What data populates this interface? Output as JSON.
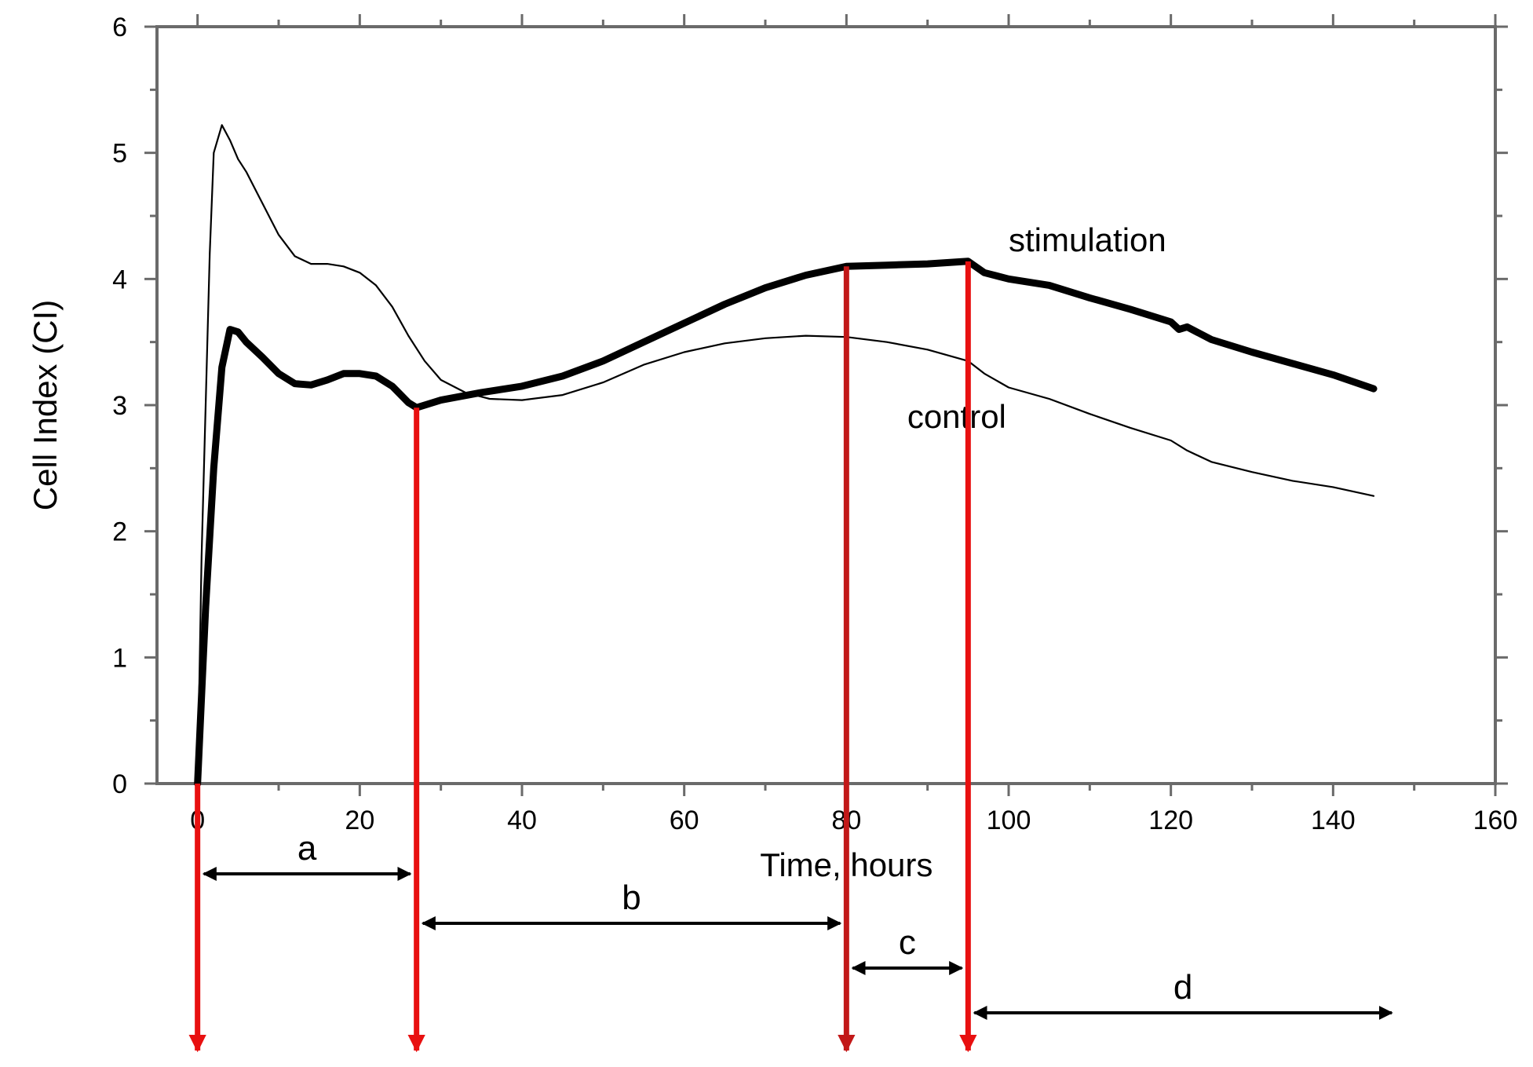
{
  "chart_data": {
    "type": "line",
    "title": "",
    "xlabel": "Time, hours",
    "ylabel": "Cell Index (CI)",
    "xlim": [
      -5,
      160
    ],
    "ylim": [
      0,
      6
    ],
    "x_ticks": [
      0,
      20,
      40,
      60,
      80,
      100,
      120,
      140,
      160
    ],
    "x_tick_labels": [
      "0",
      "20",
      "40",
      "60",
      "80",
      "100",
      "120",
      "140",
      "160"
    ],
    "y_ticks": [
      0,
      1,
      2,
      3,
      4,
      5,
      6
    ],
    "y_tick_labels": [
      "0",
      "1",
      "2",
      "3",
      "4",
      "5",
      "6"
    ],
    "grid": false,
    "legend": "none (series labelled inline)",
    "series": [
      {
        "name": "stimulation",
        "color": "#000000",
        "weight": "thick",
        "x": [
          0,
          0.5,
          1,
          2,
          3,
          4,
          5,
          6,
          8,
          10,
          12,
          14,
          16,
          18,
          20,
          22,
          24,
          26,
          27,
          30,
          35,
          40,
          45,
          50,
          55,
          60,
          65,
          70,
          75,
          80,
          85,
          90,
          95,
          97,
          100,
          105,
          110,
          115,
          120,
          121,
          122,
          125,
          130,
          135,
          140,
          145
        ],
        "y": [
          0,
          0.7,
          1.4,
          2.5,
          3.3,
          3.6,
          3.58,
          3.5,
          3.38,
          3.25,
          3.17,
          3.16,
          3.2,
          3.25,
          3.25,
          3.23,
          3.15,
          3.02,
          2.98,
          3.04,
          3.1,
          3.15,
          3.23,
          3.35,
          3.5,
          3.65,
          3.8,
          3.93,
          4.03,
          4.1,
          4.11,
          4.12,
          4.14,
          4.05,
          4.0,
          3.95,
          3.85,
          3.76,
          3.66,
          3.6,
          3.62,
          3.52,
          3.42,
          3.33,
          3.24,
          3.13
        ]
      },
      {
        "name": "control",
        "color": "#000000",
        "weight": "thin",
        "x": [
          0,
          0.5,
          1,
          1.5,
          2,
          3,
          4,
          5,
          6,
          8,
          10,
          12,
          14,
          16,
          18,
          20,
          22,
          24,
          26,
          28,
          30,
          33,
          36,
          40,
          45,
          50,
          55,
          60,
          65,
          70,
          75,
          80,
          85,
          90,
          95,
          97,
          100,
          105,
          110,
          115,
          120,
          122,
          125,
          130,
          135,
          140,
          145
        ],
        "y": [
          0,
          1.8,
          3.0,
          4.2,
          5.0,
          5.22,
          5.1,
          4.95,
          4.85,
          4.6,
          4.35,
          4.18,
          4.12,
          4.12,
          4.1,
          4.05,
          3.95,
          3.78,
          3.55,
          3.35,
          3.2,
          3.1,
          3.05,
          3.04,
          3.08,
          3.18,
          3.32,
          3.42,
          3.49,
          3.53,
          3.55,
          3.54,
          3.5,
          3.44,
          3.35,
          3.25,
          3.14,
          3.05,
          2.93,
          2.82,
          2.72,
          2.64,
          2.55,
          2.47,
          2.4,
          2.35,
          2.28
        ]
      }
    ],
    "annotations": {
      "series_labels": [
        {
          "text": "stimulation",
          "x": 100,
          "y": 4.22
        },
        {
          "text": "control",
          "x": 87.5,
          "y": 2.82
        }
      ],
      "markers": [
        {
          "x": 0,
          "color": "#e81010"
        },
        {
          "x": 27,
          "color": "#e81010"
        },
        {
          "x": 80,
          "color": "#c21818"
        },
        {
          "x": 95,
          "color": "#e81010"
        }
      ],
      "phases": [
        {
          "label": "a",
          "from": 0,
          "to": 27
        },
        {
          "label": "b",
          "from": 27,
          "to": 80
        },
        {
          "label": "c",
          "from": 80,
          "to": 95
        },
        {
          "label": "d",
          "from": 95,
          "to": 148
        }
      ]
    }
  }
}
